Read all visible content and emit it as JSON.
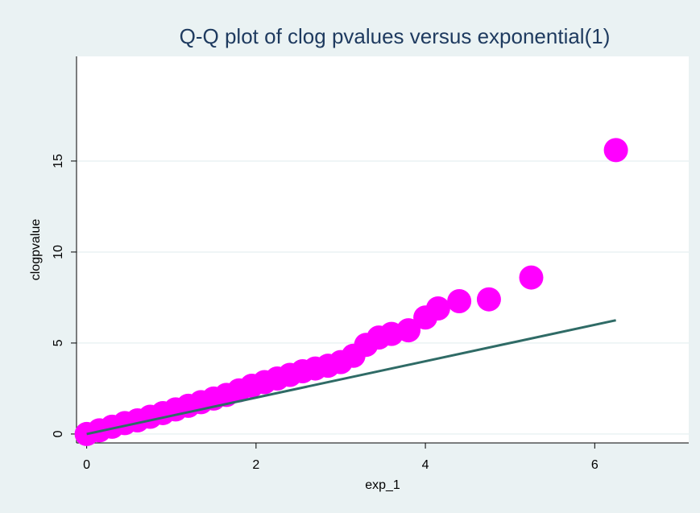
{
  "chart_data": {
    "type": "scatter",
    "title": "Q-Q plot of clog pvalues versus exponential(1)",
    "x_label": "exp_1",
    "y_label": "clogpvalue",
    "xlim": [
      -0.12,
      7.11
    ],
    "ylim": [
      -0.49,
      20.75
    ],
    "xticks": [
      0,
      2,
      4,
      6
    ],
    "yticks": [
      0,
      5,
      10,
      15
    ],
    "grid": "y",
    "series": [
      {
        "mode": "markers",
        "color": "#ff00ff",
        "x": [
          0,
          0.15,
          0.3,
          0.45,
          0.6,
          0.75,
          0.9,
          1.05,
          1.2,
          1.35,
          1.5,
          1.65,
          1.8,
          1.95,
          2.1,
          2.25,
          2.4,
          2.55,
          2.7,
          2.85,
          3.0,
          3.15,
          3.3,
          3.45,
          3.6,
          3.8,
          4.0,
          4.15,
          4.4,
          4.75,
          5.25,
          6.25
        ],
        "y": [
          0,
          0.2,
          0.4,
          0.6,
          0.75,
          0.95,
          1.15,
          1.35,
          1.55,
          1.75,
          1.95,
          2.15,
          2.4,
          2.65,
          2.85,
          3.05,
          3.25,
          3.45,
          3.6,
          3.75,
          3.95,
          4.3,
          4.9,
          5.3,
          5.5,
          5.7,
          6.4,
          6.9,
          7.3,
          7.4,
          8.6,
          15.6
        ]
      },
      {
        "mode": "line",
        "color": "#2f6b66",
        "x": [
          0,
          6.25
        ],
        "y": [
          0,
          6.25
        ]
      }
    ]
  }
}
